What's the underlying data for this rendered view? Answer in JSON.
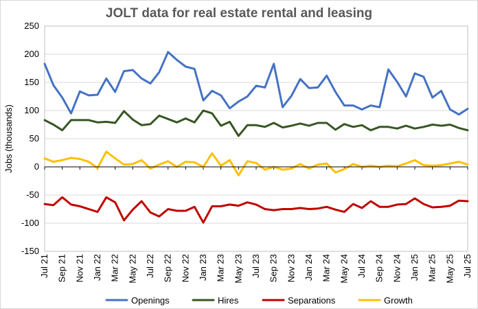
{
  "chart_data": {
    "type": "line",
    "title": "JOLT data for real estate rental and leasing",
    "xlabel": "",
    "ylabel": "Jobs (thousands)",
    "ylim": [
      -150,
      250
    ],
    "yticks": [
      -150,
      -100,
      -50,
      0,
      50,
      100,
      150,
      200,
      250
    ],
    "grid": true,
    "legend_position": "bottom",
    "x": [
      "Jul 21",
      "Aug 21",
      "Sep 21",
      "Oct 21",
      "Nov 21",
      "Dec 21",
      "Jan 22",
      "Feb 22",
      "Mar 22",
      "Apr 22",
      "May 22",
      "Jun 22",
      "Jul 22",
      "Aug 22",
      "Sep 22",
      "Oct 22",
      "Nov 22",
      "Dec 22",
      "Jan 23",
      "Feb 23",
      "Mar 23",
      "Apr 23",
      "May 23",
      "Jun 23",
      "Jul 23",
      "Aug 23",
      "Sep 23",
      "Oct 23",
      "Nov 23",
      "Dec 23",
      "Jan 24",
      "Feb 24",
      "Mar 24",
      "Apr 24",
      "May 24",
      "Jun 24",
      "Jul 24",
      "Aug 24",
      "Sep 24",
      "Oct 24",
      "Nov 24",
      "Dec 24",
      "Jan 25",
      "Feb 25",
      "Mar 25",
      "Apr 25",
      "May 25",
      "Jun 25",
      "Jul 25"
    ],
    "tick_labels": [
      "Jul 21",
      "Sep 21",
      "Nov 21",
      "Jan 22",
      "Mar 22",
      "May 22",
      "Jul 22",
      "Sep 22",
      "Nov 22",
      "Jan 23",
      "Mar 23",
      "May 23",
      "Jul 23",
      "Sep 23",
      "Nov 23",
      "Jan 24",
      "Mar 24",
      "May 24",
      "Jul 24",
      "Sep 24",
      "Nov 24",
      "Jan 25",
      "Mar 25",
      "May 25",
      "Jul 25"
    ],
    "series": [
      {
        "name": "Openings",
        "color": "#4472C4",
        "values": [
          183,
          145,
          123,
          95,
          134,
          127,
          128,
          157,
          133,
          170,
          172,
          157,
          148,
          168,
          204,
          190,
          178,
          174,
          118,
          135,
          127,
          104,
          116,
          125,
          144,
          141,
          183,
          106,
          126,
          156,
          140,
          141,
          162,
          133,
          109,
          109,
          102,
          109,
          106,
          173,
          151,
          125,
          166,
          160,
          123,
          135,
          102,
          93,
          103
        ]
      },
      {
        "name": "Hires",
        "color": "#375623",
        "values": [
          83,
          75,
          65,
          83,
          83,
          83,
          79,
          80,
          78,
          99,
          84,
          74,
          76,
          91,
          85,
          79,
          86,
          79,
          100,
          95,
          73,
          80,
          55,
          74,
          74,
          71,
          78,
          70,
          73,
          77,
          73,
          78,
          78,
          66,
          76,
          71,
          74,
          65,
          71,
          71,
          68,
          73,
          68,
          71,
          75,
          73,
          75,
          69,
          65
        ]
      },
      {
        "name": "Separations",
        "color": "#C00000",
        "values": [
          -66,
          -68,
          -54,
          -67,
          -70,
          -75,
          -80,
          -54,
          -63,
          -95,
          -76,
          -61,
          -81,
          -88,
          -75,
          -78,
          -78,
          -71,
          -99,
          -70,
          -70,
          -67,
          -69,
          -63,
          -67,
          -75,
          -77,
          -75,
          -75,
          -73,
          -75,
          -74,
          -71,
          -76,
          -80,
          -66,
          -73,
          -61,
          -71,
          -71,
          -67,
          -66,
          -56,
          -66,
          -72,
          -71,
          -69,
          -60,
          -61
        ]
      },
      {
        "name": "Growth",
        "color": "#FFC000",
        "values": [
          15,
          9,
          12,
          16,
          14,
          9,
          -2,
          27,
          15,
          4,
          5,
          12,
          -3,
          4,
          10,
          0,
          9,
          8,
          0,
          24,
          2,
          12,
          -15,
          10,
          7,
          -5,
          0,
          -5,
          -3,
          5,
          -3,
          4,
          6,
          -10,
          -4,
          5,
          0,
          2,
          0,
          2,
          1,
          6,
          12,
          3,
          2,
          3,
          6,
          9,
          4
        ]
      }
    ]
  }
}
